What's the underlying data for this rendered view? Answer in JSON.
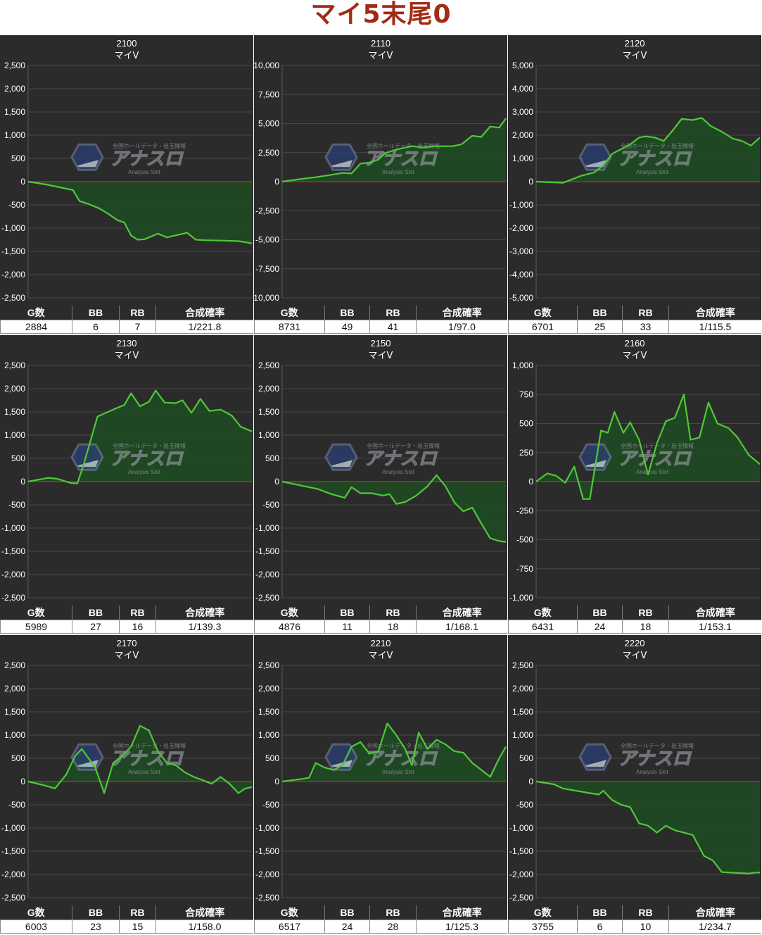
{
  "title": "マイ5末尾0",
  "table_headers": [
    "G数",
    "BB",
    "RB",
    "合成確率"
  ],
  "watermark": {
    "top": "全国ホールデータ・出玉情報",
    "main": "アナスロ",
    "sub": "Analysis Slot"
  },
  "colors": {
    "panel_bg": "#2b2b2b",
    "line": "#4fc83a",
    "fill": "#1f4a23",
    "zero_line": "#d42a1a",
    "grid": "#474747",
    "title": "#a32b14"
  },
  "chart_data": [
    {
      "type": "area",
      "title": "2100",
      "subtitle": "マイV",
      "ylim": [
        -2500,
        2500
      ],
      "yticks": [
        "2,500",
        "2,000",
        "1,500",
        "1,000",
        "500",
        "0",
        "-500",
        "-1,000",
        "-1,500",
        "-2,000",
        "-2,500"
      ],
      "x": [
        0,
        0.08,
        0.2,
        0.23,
        0.27,
        0.32,
        0.36,
        0.4,
        0.43,
        0.46,
        0.49,
        0.52,
        0.58,
        0.62,
        0.71,
        0.75,
        0.79,
        0.88,
        0.94,
        0.98,
        1
      ],
      "y": [
        0,
        -60,
        -180,
        -420,
        -480,
        -580,
        -700,
        -830,
        -880,
        -1160,
        -1250,
        -1240,
        -1120,
        -1200,
        -1100,
        -1250,
        -1260,
        -1270,
        -1280,
        -1310,
        -1330
      ],
      "stats": {
        "games": "2884",
        "bb": "6",
        "rb": "7",
        "rate": "1/221.8"
      }
    },
    {
      "type": "area",
      "title": "2110",
      "subtitle": "マイV",
      "ylim": [
        -10000,
        10000
      ],
      "yticks": [
        "10,000",
        "7,500",
        "5,000",
        "2,500",
        "0",
        "-2,500",
        "-5,000",
        "-7,500",
        "-10,000"
      ],
      "x": [
        0,
        0.08,
        0.15,
        0.21,
        0.27,
        0.31,
        0.35,
        0.39,
        0.43,
        0.46,
        0.5,
        0.54,
        0.58,
        0.63,
        0.68,
        0.72,
        0.76,
        0.8,
        0.85,
        0.89,
        0.93,
        0.97,
        1
      ],
      "y": [
        0,
        220,
        380,
        560,
        750,
        700,
        1550,
        1650,
        1900,
        2450,
        2700,
        2900,
        3050,
        2950,
        3050,
        3050,
        3050,
        3200,
        3950,
        3850,
        4750,
        4650,
        5450
      ],
      "stats": {
        "games": "8731",
        "bb": "49",
        "rb": "41",
        "rate": "1/97.0"
      }
    },
    {
      "type": "area",
      "title": "2120",
      "subtitle": "マイV",
      "ylim": [
        -5000,
        5000
      ],
      "yticks": [
        "5,000",
        "4,000",
        "3,000",
        "2,000",
        "1,000",
        "0",
        "-1,000",
        "-2,000",
        "-3,000",
        "-4,000",
        "-5,000"
      ],
      "x": [
        0,
        0.12,
        0.2,
        0.26,
        0.3,
        0.34,
        0.38,
        0.42,
        0.46,
        0.49,
        0.53,
        0.57,
        0.61,
        0.65,
        0.7,
        0.74,
        0.78,
        0.83,
        0.88,
        0.92,
        0.96,
        1
      ],
      "y": [
        0,
        -50,
        250,
        400,
        700,
        1200,
        1400,
        1600,
        1900,
        1950,
        1900,
        1750,
        2200,
        2700,
        2650,
        2750,
        2400,
        2150,
        1850,
        1750,
        1550,
        1900
      ],
      "stats": {
        "games": "6701",
        "bb": "25",
        "rb": "33",
        "rate": "1/115.5"
      }
    },
    {
      "type": "area",
      "title": "2130",
      "subtitle": "マイV",
      "ylim": [
        -2500,
        2500
      ],
      "yticks": [
        "2,500",
        "2,000",
        "1,500",
        "1,000",
        "500",
        "0",
        "-500",
        "-1,000",
        "-1,500",
        "-2,000",
        "-2,500"
      ],
      "x": [
        0,
        0.09,
        0.13,
        0.19,
        0.22,
        0.25,
        0.31,
        0.38,
        0.43,
        0.46,
        0.5,
        0.54,
        0.57,
        0.61,
        0.66,
        0.69,
        0.73,
        0.77,
        0.81,
        0.86,
        0.91,
        0.95,
        1
      ],
      "y": [
        0,
        80,
        60,
        -30,
        -40,
        400,
        1400,
        1550,
        1650,
        1900,
        1620,
        1720,
        1960,
        1700,
        1690,
        1750,
        1480,
        1780,
        1520,
        1550,
        1420,
        1180,
        1080
      ],
      "stats": {
        "games": "5989",
        "bb": "27",
        "rb": "16",
        "rate": "1/139.3"
      }
    },
    {
      "type": "area",
      "title": "2150",
      "subtitle": "マイV",
      "ylim": [
        -2500,
        2500
      ],
      "yticks": [
        "2,500",
        "2,000",
        "1,500",
        "1,000",
        "500",
        "0",
        "-500",
        "-1,000",
        "-1,500",
        "-2,000",
        "-2,500"
      ],
      "x": [
        0,
        0.08,
        0.16,
        0.22,
        0.28,
        0.31,
        0.35,
        0.4,
        0.45,
        0.48,
        0.51,
        0.55,
        0.6,
        0.65,
        0.69,
        0.73,
        0.77,
        0.81,
        0.85,
        0.89,
        0.93,
        0.97,
        1
      ],
      "y": [
        0,
        -80,
        -160,
        -270,
        -350,
        -120,
        -250,
        -250,
        -300,
        -270,
        -480,
        -440,
        -300,
        -100,
        140,
        -100,
        -450,
        -640,
        -560,
        -900,
        -1220,
        -1280,
        -1300
      ],
      "stats": {
        "games": "4876",
        "bb": "11",
        "rb": "18",
        "rate": "1/168.1"
      }
    },
    {
      "type": "area",
      "title": "2160",
      "subtitle": "マイV",
      "ylim": [
        -1000,
        1000
      ],
      "yticks": [
        "1,000",
        "750",
        "500",
        "250",
        "0",
        "-250",
        "-500",
        "-750",
        "-1,000"
      ],
      "x": [
        0,
        0.05,
        0.09,
        0.13,
        0.17,
        0.21,
        0.24,
        0.29,
        0.32,
        0.35,
        0.39,
        0.42,
        0.46,
        0.5,
        0.54,
        0.58,
        0.62,
        0.66,
        0.69,
        0.73,
        0.77,
        0.81,
        0.86,
        0.9,
        0.95,
        1
      ],
      "y": [
        0,
        70,
        50,
        -10,
        130,
        -150,
        -150,
        440,
        420,
        600,
        420,
        510,
        360,
        60,
        330,
        520,
        550,
        750,
        360,
        380,
        680,
        500,
        460,
        380,
        230,
        150
      ],
      "stats": {
        "games": "6431",
        "bb": "24",
        "rb": "18",
        "rate": "1/153.1"
      }
    },
    {
      "type": "area",
      "title": "2170",
      "subtitle": "マイV",
      "ylim": [
        -2500,
        2500
      ],
      "yticks": [
        "2,500",
        "2,000",
        "1,500",
        "1,000",
        "500",
        "0",
        "-500",
        "-1,000",
        "-1,500",
        "-2,000",
        "-2,500"
      ],
      "x": [
        0,
        0.07,
        0.12,
        0.17,
        0.21,
        0.24,
        0.27,
        0.3,
        0.34,
        0.38,
        0.42,
        0.46,
        0.5,
        0.54,
        0.58,
        0.62,
        0.66,
        0.7,
        0.74,
        0.78,
        0.82,
        0.86,
        0.9,
        0.94,
        0.97,
        1
      ],
      "y": [
        0,
        -80,
        -150,
        150,
        550,
        700,
        500,
        300,
        -250,
        400,
        550,
        750,
        1200,
        1100,
        650,
        400,
        350,
        200,
        100,
        30,
        -50,
        100,
        -50,
        -250,
        -150,
        -120
      ],
      "stats": {
        "games": "6003",
        "bb": "23",
        "rb": "15",
        "rate": "1/158.0"
      }
    },
    {
      "type": "area",
      "title": "2210",
      "subtitle": "マイV",
      "ylim": [
        -2500,
        2500
      ],
      "yticks": [
        "2,500",
        "2,000",
        "1,500",
        "1,000",
        "500",
        "0",
        "-500",
        "-1,000",
        "-1,500",
        "-2,000",
        "-2,500"
      ],
      "x": [
        0,
        0.08,
        0.12,
        0.15,
        0.19,
        0.23,
        0.27,
        0.31,
        0.35,
        0.39,
        0.43,
        0.47,
        0.51,
        0.55,
        0.58,
        0.61,
        0.65,
        0.69,
        0.73,
        0.77,
        0.81,
        0.85,
        0.89,
        0.93,
        0.97,
        1
      ],
      "y": [
        0,
        50,
        80,
        400,
        300,
        250,
        350,
        750,
        850,
        600,
        650,
        1250,
        1000,
        700,
        350,
        1050,
        700,
        900,
        800,
        650,
        620,
        400,
        250,
        100,
        500,
        750
      ],
      "stats": {
        "games": "6517",
        "bb": "24",
        "rb": "28",
        "rate": "1/125.3"
      }
    },
    {
      "type": "area",
      "title": "2220",
      "subtitle": "マイV",
      "ylim": [
        -2500,
        2500
      ],
      "yticks": [
        "2,500",
        "2,000",
        "1,500",
        "1,000",
        "500",
        "0",
        "-500",
        "-1,000",
        "-1,500",
        "-2,000",
        "-2,500"
      ],
      "x": [
        0,
        0.04,
        0.08,
        0.12,
        0.18,
        0.24,
        0.28,
        0.3,
        0.34,
        0.38,
        0.42,
        0.46,
        0.5,
        0.54,
        0.58,
        0.62,
        0.66,
        0.7,
        0.75,
        0.79,
        0.83,
        0.87,
        0.91,
        0.95,
        0.98,
        1
      ],
      "y": [
        0,
        -30,
        -60,
        -150,
        -200,
        -250,
        -280,
        -200,
        -400,
        -500,
        -550,
        -900,
        -950,
        -1100,
        -950,
        -1050,
        -1100,
        -1150,
        -1600,
        -1700,
        -1950,
        -1960,
        -1970,
        -1980,
        -1960,
        -1960
      ],
      "stats": {
        "games": "3755",
        "bb": "6",
        "rb": "10",
        "rate": "1/234.7"
      }
    }
  ]
}
